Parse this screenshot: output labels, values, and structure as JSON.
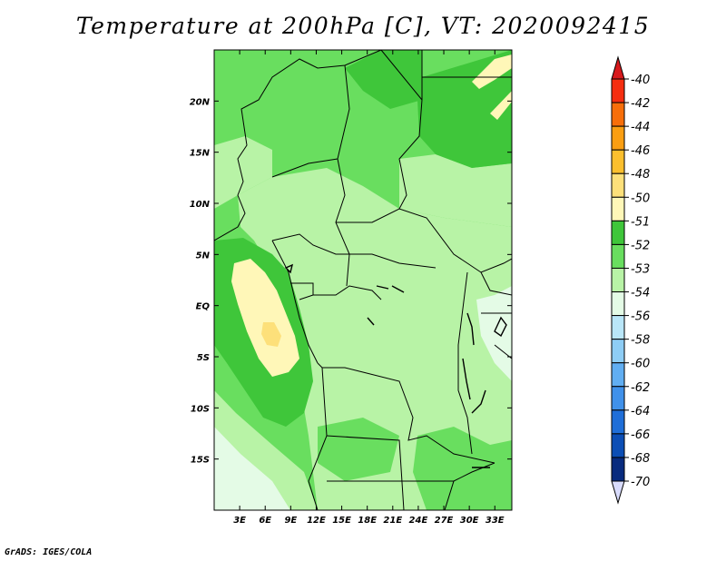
{
  "title": "Temperature at 200hPa [C], VT: 2020092415",
  "credit": "GrADS: IGES/COLA",
  "map": {
    "lon_range": [
      0,
      35
    ],
    "lat_range": [
      -20,
      25
    ],
    "lat_ticks": [
      "20N",
      "15N",
      "10N",
      "5N",
      "EQ",
      "5S",
      "10S",
      "15S"
    ],
    "lon_ticks": [
      "3E",
      "6E",
      "9E",
      "12E",
      "15E",
      "18E",
      "21E",
      "24E",
      "27E",
      "30E",
      "33E"
    ]
  },
  "colorbar": {
    "labels": [
      "-40",
      "-42",
      "-44",
      "-46",
      "-48",
      "-50",
      "-51",
      "-52",
      "-53",
      "-54",
      "-56",
      "-58",
      "-60",
      "-62",
      "-64",
      "-66",
      "-68",
      "-70"
    ],
    "colors": {
      "over": "#d7191c",
      "levels": [
        "#f52e10",
        "#f76e0a",
        "#fa9e12",
        "#fbbf2e",
        "#fde07a",
        "#fff7b8",
        "#3fc63a",
        "#69de5f",
        "#b8f3a6",
        "#e4fbe6",
        "#b9e6f8",
        "#8ecdf5",
        "#61aef2",
        "#4091ea",
        "#1f6ed8",
        "#0c4eb5",
        "#082b7e"
      ],
      "under": "#d9dcfd"
    }
  },
  "field_colors": {
    "minus52": "#3fc63a",
    "minus53": "#69de5f",
    "minus54": "#b8f3a6",
    "minus51": "#fff7b8",
    "minus50": "#fde07a",
    "minus56": "#e4fbe6"
  }
}
